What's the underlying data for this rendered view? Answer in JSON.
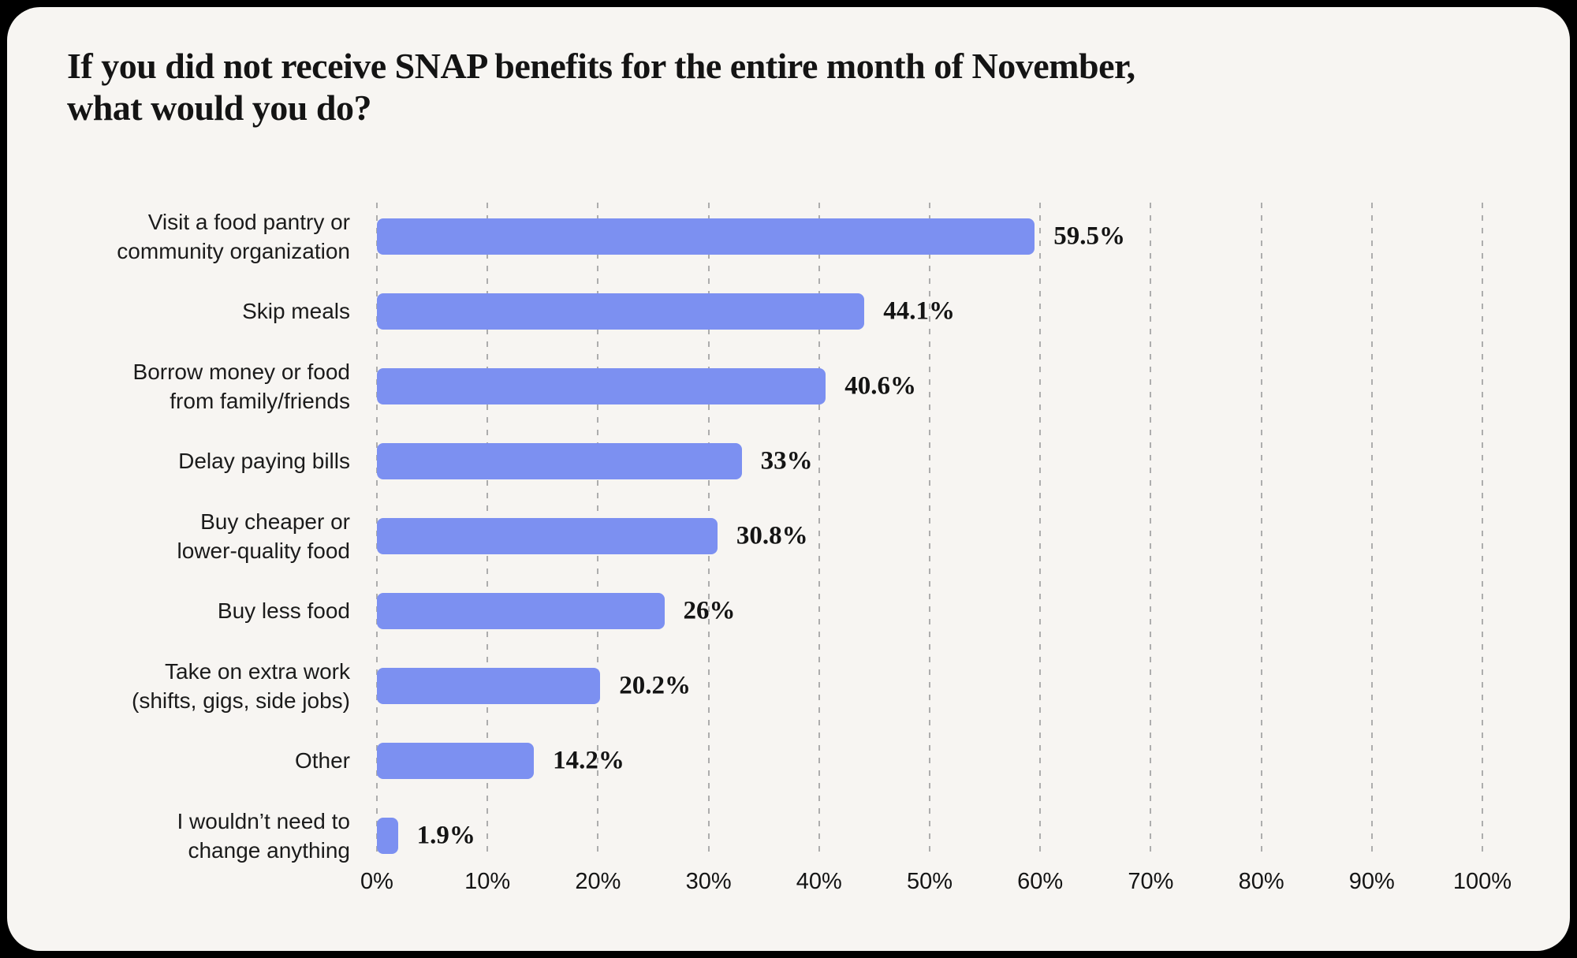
{
  "page": {
    "outer_background": "#000000",
    "card_background": "#F7F5F2"
  },
  "title": {
    "line1": "If you did not receive SNAP benefits for the entire month of November,",
    "line2": "what would you do?"
  },
  "chart_data": {
    "type": "bar",
    "orientation": "horizontal",
    "title": "If you did not receive SNAP benefits for the entire month of November, what would you do?",
    "categories": [
      "Visit a food pantry or community organization",
      "Skip meals",
      "Borrow money or food from family/friends",
      "Delay paying bills",
      "Buy cheaper or lower-quality food",
      "Buy less food",
      "Take on extra work (shifts, gigs, side jobs)",
      "Other",
      "I wouldn’t need to change anything"
    ],
    "label_lines": [
      [
        "Visit a food pantry or",
        "community organization"
      ],
      [
        "Skip meals"
      ],
      [
        "Borrow money or food",
        "from family/friends"
      ],
      [
        "Delay paying bills"
      ],
      [
        "Buy cheaper or",
        "lower-quality food"
      ],
      [
        "Buy less food"
      ],
      [
        "Take on extra work",
        "(shifts, gigs, side jobs)"
      ],
      [
        "Other"
      ],
      [
        "I wouldn’t need to",
        "change anything"
      ]
    ],
    "values": [
      59.5,
      44.1,
      40.6,
      33,
      30.8,
      26,
      20.2,
      14.2,
      1.9
    ],
    "value_labels": [
      "59.5%",
      "44.1%",
      "40.6%",
      "33%",
      "30.8%",
      "26%",
      "20.2%",
      "14.2%",
      "1.9%"
    ],
    "x_ticks": [
      "0%",
      "10%",
      "20%",
      "30%",
      "40%",
      "50%",
      "60%",
      "70%",
      "80%",
      "90%",
      "100%"
    ],
    "xlim": [
      0,
      100
    ],
    "xlabel": "",
    "ylabel": "",
    "legend": "none",
    "grid": "vertical-dashed",
    "bar_color": "#7C90F1",
    "gridline_color": "#ADADAD",
    "text_color": "#141414"
  }
}
